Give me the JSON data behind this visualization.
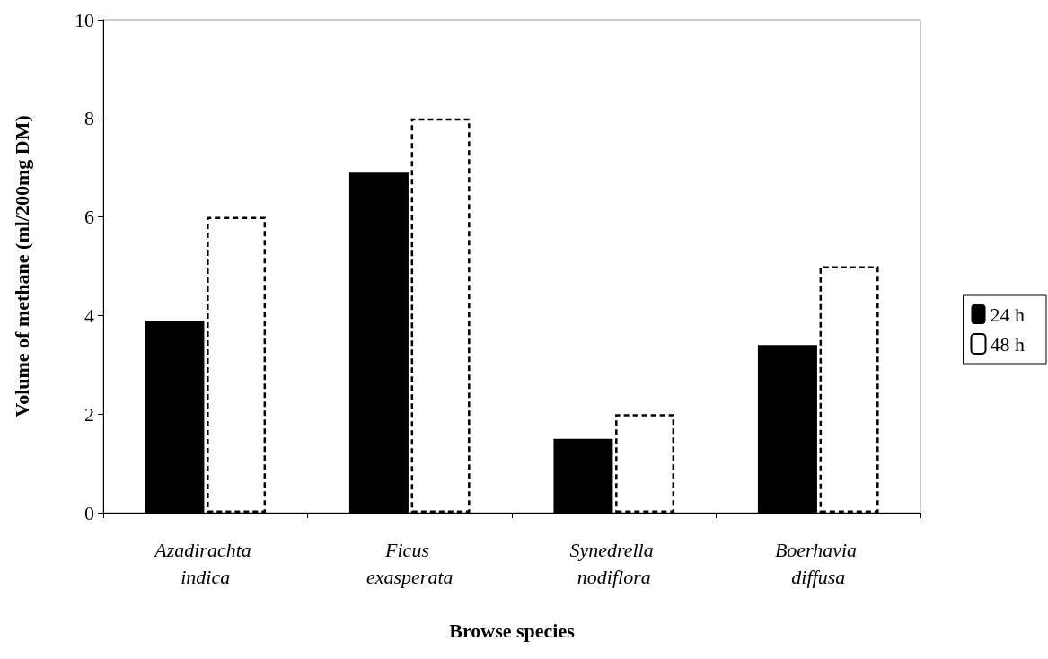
{
  "chart_data": {
    "type": "bar",
    "xlabel": "Browse species",
    "ylabel": "Volume of methane (ml/200mg DM)",
    "categories": [
      "Azadirachta indica",
      "Ficus exasperata",
      "Synedrella nodiflora",
      "Boerhavia diffusa"
    ],
    "series": [
      {
        "name": "24 h",
        "color": "#000000",
        "values": [
          3.9,
          6.9,
          1.5,
          3.4
        ]
      },
      {
        "name": "48 h",
        "color": "#ffffff",
        "line_style": "dashed",
        "values": [
          6,
          8,
          2,
          5
        ]
      }
    ],
    "ylim": [
      0,
      10
    ],
    "yticks": [
      0,
      2,
      4,
      6,
      8,
      10
    ],
    "grid": false,
    "legend": "right"
  }
}
